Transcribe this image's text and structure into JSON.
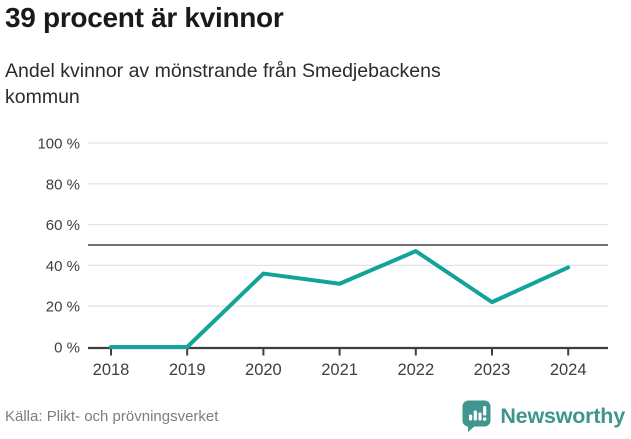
{
  "header": {
    "title": "39 procent är kvinnor",
    "subtitle": "Andel kvinnor av mönstrande från Smedjebackens kommun",
    "subtitle_line1": "Andel kvinnor av mönstrande från Smedjebackens",
    "subtitle_line2": "kommun"
  },
  "chart_data": {
    "type": "line",
    "title": "Andel kvinnor av mönstrande från Smedjebackens kommun",
    "categories": [
      "2018",
      "2019",
      "2020",
      "2021",
      "2022",
      "2023",
      "2024"
    ],
    "values": [
      0,
      0,
      36,
      31,
      47,
      22,
      39
    ],
    "unit": "%",
    "xlabel": "",
    "ylabel": "",
    "ylim": [
      0,
      100
    ],
    "yticks": [
      0,
      20,
      40,
      60,
      80,
      100
    ],
    "ytick_labels": [
      "0 %",
      "20 %",
      "40 %",
      "60 %",
      "80 %",
      "100 %"
    ],
    "reference_line": 50,
    "grid": true,
    "legend_position": "none",
    "line_color": "#12a39a"
  },
  "footer": {
    "source": "Källa: Plikt- och prövningsverket",
    "brand": "Newsworthy"
  },
  "icons": {
    "logo": "bar-chart-speech-bubble"
  },
  "colors": {
    "accent_line": "#12a39a",
    "brand_teal": "#3e968e",
    "grid": "#e4e4e4",
    "reference": "#707070",
    "axis": "#3f3f3f",
    "title_text": "#1a1a1a",
    "body_text": "#2b2b2b",
    "muted_text": "#7d7d7d"
  }
}
